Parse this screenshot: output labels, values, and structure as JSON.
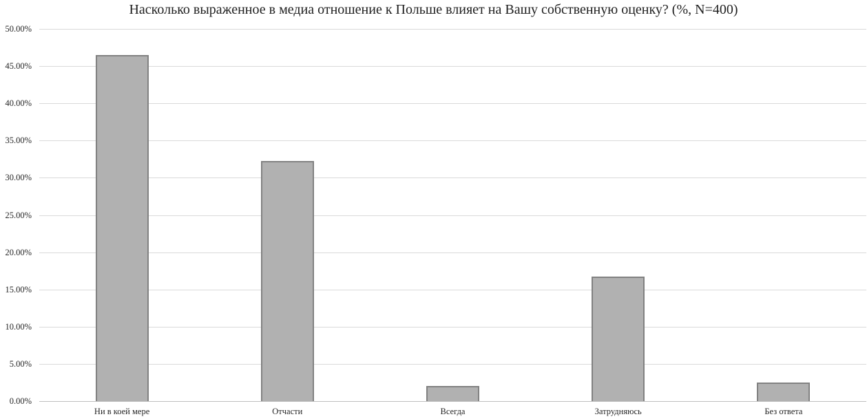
{
  "chart_data": {
    "type": "bar",
    "title": "Насколько выраженное в медиа отношение к Польше влияет на Вашу собственную оценку? (%, N=400)",
    "categories": [
      "Ни в коей мере",
      "Отчасти",
      "Всегда",
      "Затрудняюсь",
      "Без ответа"
    ],
    "values": [
      46.5,
      32.25,
      2.0,
      16.75,
      2.5
    ],
    "xlabel": "",
    "ylabel": "",
    "ylim": [
      0,
      50
    ],
    "grid": true,
    "legend_position": "none",
    "y_ticks": [
      {
        "label": "0.00%",
        "value": 0
      },
      {
        "label": "5.00%",
        "value": 5
      },
      {
        "label": "10.00%",
        "value": 10
      },
      {
        "label": "15.00%",
        "value": 15
      },
      {
        "label": "20.00%",
        "value": 20
      },
      {
        "label": "25.00%",
        "value": 25
      },
      {
        "label": "30.00%",
        "value": 30
      },
      {
        "label": "35.00%",
        "value": 35
      },
      {
        "label": "40.00%",
        "value": 40
      },
      {
        "label": "45.00%",
        "value": 45
      },
      {
        "label": "50.00%",
        "value": 50
      }
    ],
    "colors": {
      "bar_fill": "#b1b1b1",
      "bar_border": "#818181",
      "gridline": "#d9d9d9",
      "axis_line": "#bfbfbf",
      "text": "#262626",
      "background": "#ffffff"
    }
  }
}
